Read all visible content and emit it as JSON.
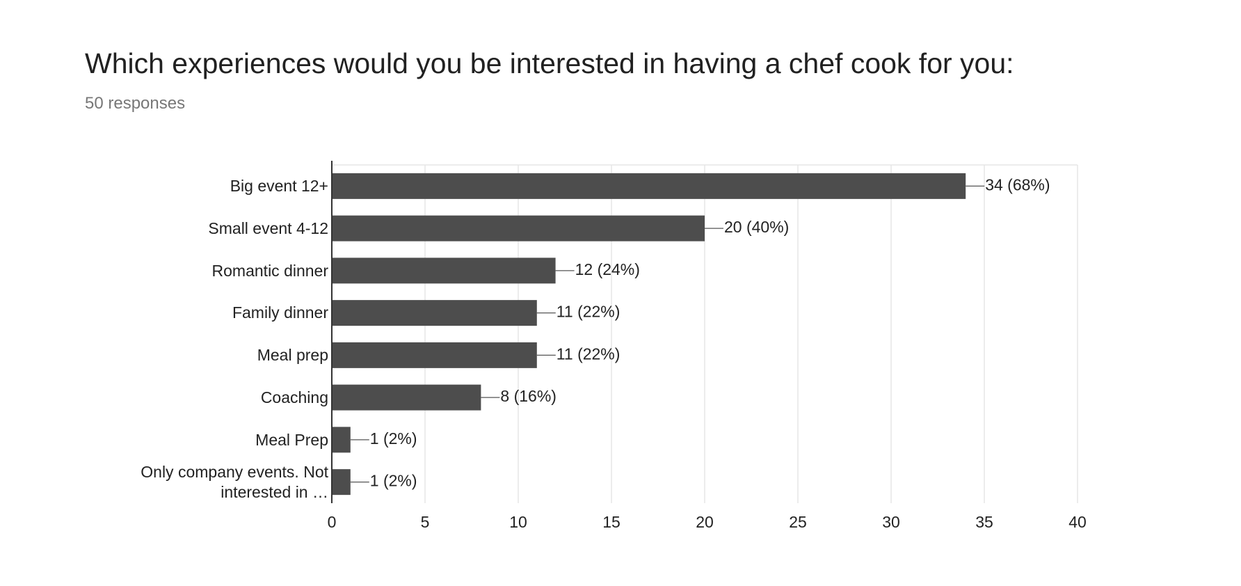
{
  "chart_data": {
    "type": "bar",
    "orientation": "horizontal",
    "title": "Which experiences would you be interested in having a chef cook for you:",
    "subtitle": "50 responses",
    "categories": [
      "Big event 12+",
      "Small event 4-12",
      "Romantic dinner",
      "Family dinner",
      "Meal prep",
      "Coaching",
      "Meal Prep",
      "Only company events. Not interested in …"
    ],
    "values": [
      34,
      20,
      12,
      11,
      11,
      8,
      1,
      1
    ],
    "value_labels": [
      "34 (68%)",
      "20 (40%)",
      "12 (24%)",
      "11 (22%)",
      "11 (22%)",
      "8 (16%)",
      "1 (2%)",
      "1 (2%)"
    ],
    "color": "#4d4d4d",
    "xlim": [
      0,
      40
    ],
    "xticks": [
      0,
      5,
      10,
      15,
      20,
      25,
      30,
      35,
      40
    ],
    "grid": true
  }
}
